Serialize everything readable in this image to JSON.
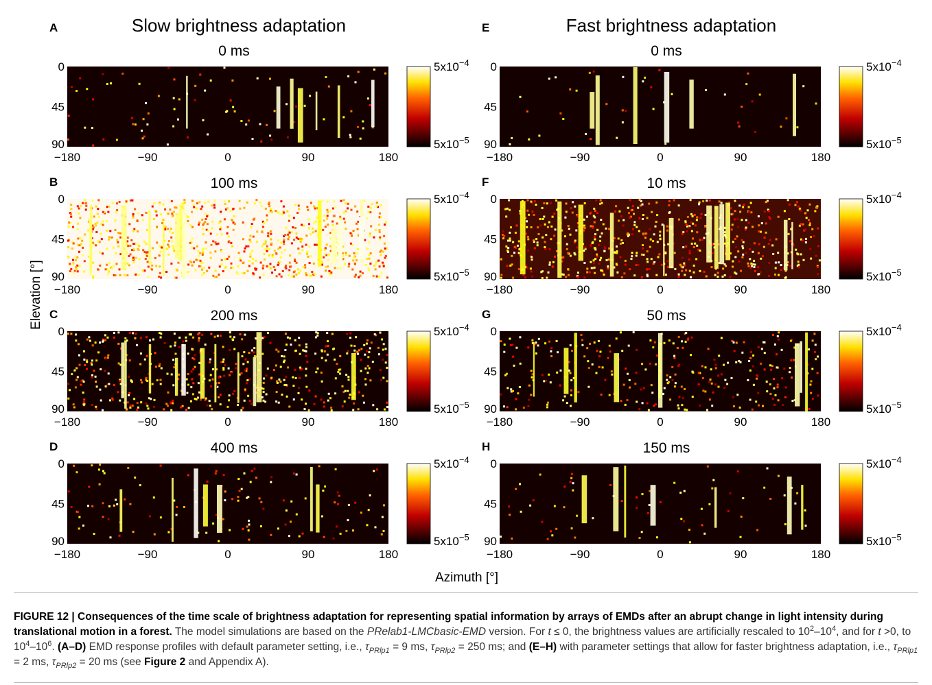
{
  "figure": {
    "columns": [
      {
        "title": "Slow brightness adaptation",
        "panels": [
          {
            "letter": "A",
            "time": "0 ms"
          },
          {
            "letter": "B",
            "time": "100 ms"
          },
          {
            "letter": "C",
            "time": "200 ms"
          },
          {
            "letter": "D",
            "time": "400 ms"
          }
        ]
      },
      {
        "title": "Fast brightness adaptation",
        "panels": [
          {
            "letter": "E",
            "time": "0 ms"
          },
          {
            "letter": "F",
            "time": "10 ms"
          },
          {
            "letter": "G",
            "time": "50 ms"
          },
          {
            "letter": "H",
            "time": "150 ms"
          }
        ]
      }
    ],
    "y_label": "Elevation [°]",
    "x_label": "Azimuth [°]",
    "y_ticks": [
      "0",
      "45",
      "90"
    ],
    "x_ticks": [
      "−180",
      "−90",
      "0",
      "90",
      "180"
    ],
    "colorbar": {
      "max": {
        "base": "5x10",
        "exp": "−4"
      },
      "min": {
        "base": "5x10",
        "exp": "−5"
      }
    }
  },
  "caption": [
    {
      "text": "FIGURE 12 | Consequences of the time scale of brightness adaptation for representing spatial information by arrays of EMDs after an abrupt change in light intensity during translational motion in a forest.",
      "style": "bold"
    },
    {
      "text": " The model simulations are based on the ",
      "style": "normal"
    },
    {
      "text": "PRelab1-LMCbasic-EMD",
      "style": "italic"
    },
    {
      "text": " version. For ",
      "style": "normal"
    },
    {
      "text": "t",
      "style": "italic"
    },
    {
      "text": " ≤ 0, the brightness values are artificially rescaled to 10",
      "style": "normal"
    },
    {
      "text": "2",
      "style": "sup"
    },
    {
      "text": "–10",
      "style": "normal"
    },
    {
      "text": "4",
      "style": "sup"
    },
    {
      "text": ", and for ",
      "style": "normal"
    },
    {
      "text": "t",
      "style": "italic"
    },
    {
      "text": " >0, to 10",
      "style": "normal"
    },
    {
      "text": "4",
      "style": "sup"
    },
    {
      "text": "–10",
      "style": "normal"
    },
    {
      "text": "6",
      "style": "sup"
    },
    {
      "text": ". ",
      "style": "normal"
    },
    {
      "text": "(A–D)",
      "style": "bold"
    },
    {
      "text": " EMD response profiles with default parameter setting, i.e., ",
      "style": "normal"
    },
    {
      "text": "τ",
      "style": "italic"
    },
    {
      "text": "PRlp1",
      "style": "sub"
    },
    {
      "text": " = 9 ms, ",
      "style": "normal"
    },
    {
      "text": "τ",
      "style": "italic"
    },
    {
      "text": "PRlp2",
      "style": "sub"
    },
    {
      "text": " = 250 ms; and ",
      "style": "normal"
    },
    {
      "text": "(E–H)",
      "style": "bold"
    },
    {
      "text": " with parameter settings that allow for faster brightness adaptation, i.e., ",
      "style": "normal"
    },
    {
      "text": "τ",
      "style": "italic"
    },
    {
      "text": "PRlp1",
      "style": "sub"
    },
    {
      "text": " = 2 ms, ",
      "style": "normal"
    },
    {
      "text": "τ",
      "style": "italic"
    },
    {
      "text": "PRlp2",
      "style": "sub"
    },
    {
      "text": " = 20 ms (see ",
      "style": "normal"
    },
    {
      "text": "Figure 2",
      "style": "bold"
    },
    {
      "text": " and Appendix A).",
      "style": "normal"
    }
  ]
}
